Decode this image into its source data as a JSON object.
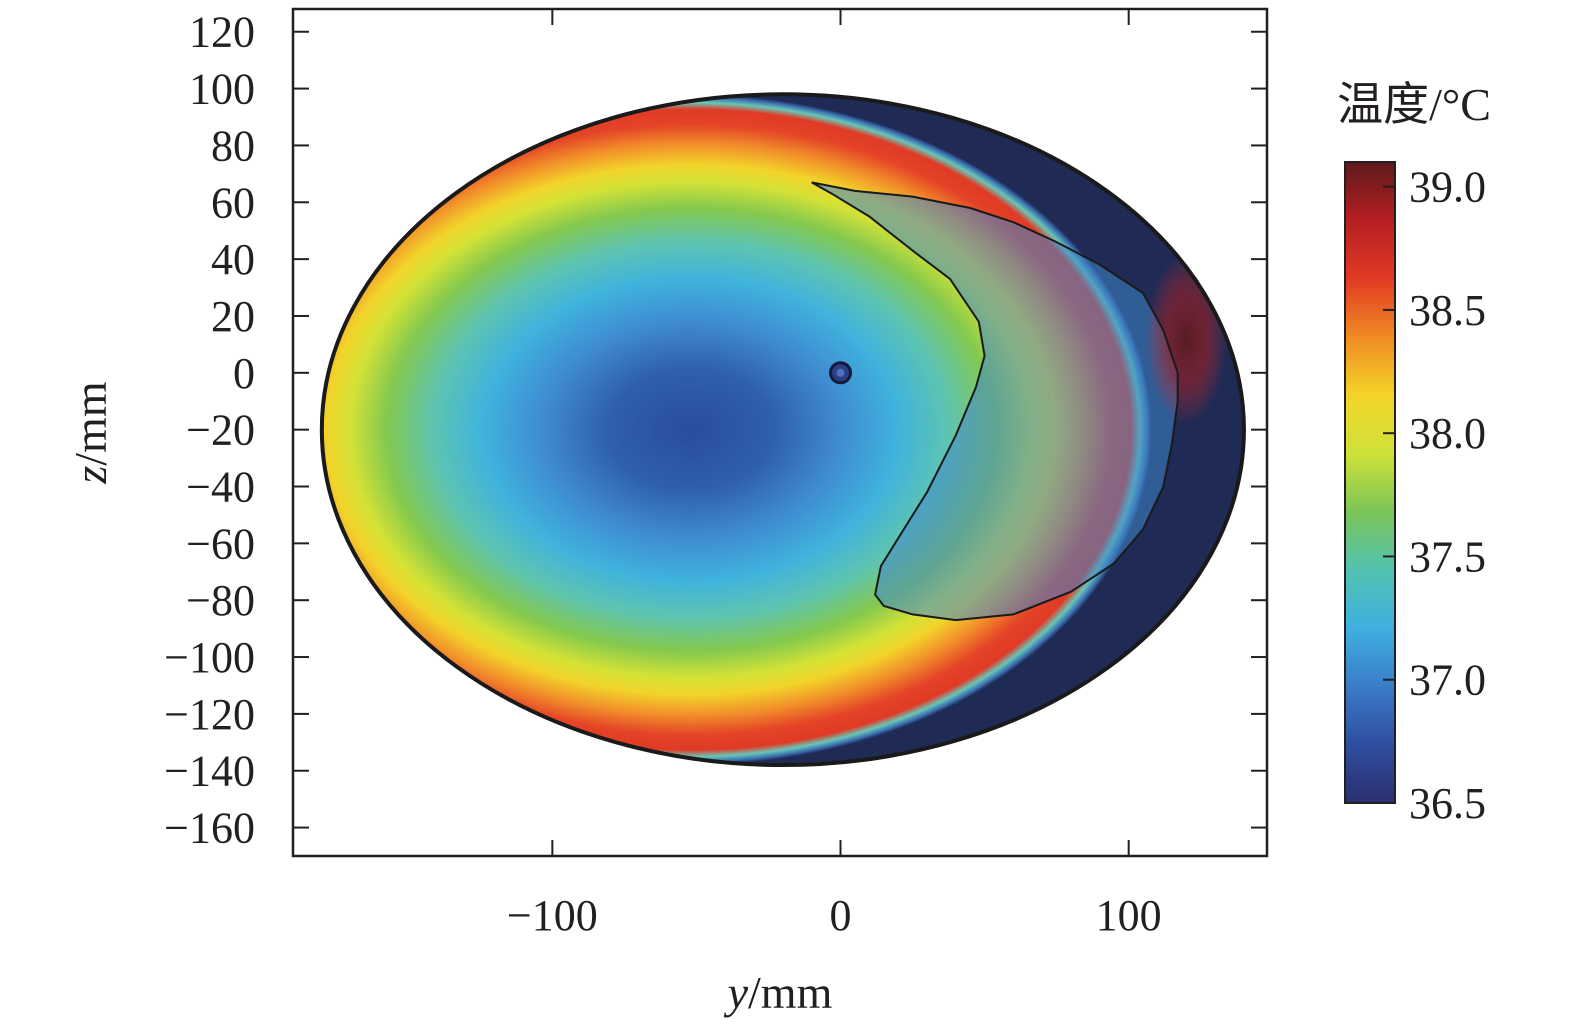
{
  "chart_data": {
    "type": "heatmap",
    "title": "",
    "xlabel": {
      "var": "y",
      "unit": "/mm"
    },
    "ylabel": {
      "var": "z",
      "unit": "/mm"
    },
    "colorbar_label": "温度/°C",
    "xlim": [
      -190,
      148
    ],
    "ylim": [
      -170,
      128
    ],
    "x_ticks": [
      -100,
      0,
      100
    ],
    "x_tick_labels": [
      "−100",
      "0",
      "100"
    ],
    "y_ticks": [
      120,
      100,
      80,
      60,
      40,
      20,
      0,
      -20,
      -40,
      -60,
      -80,
      -100,
      -120,
      -140,
      -160
    ],
    "y_tick_labels": [
      "120",
      "100",
      "80",
      "60",
      "40",
      "20",
      "0",
      "−20",
      "−40",
      "−60",
      "−80",
      "−100",
      "−120",
      "−140",
      "−160"
    ],
    "colorbar_range": [
      36.5,
      39.1
    ],
    "colorbar_ticks": [
      39.0,
      38.5,
      38.0,
      37.5,
      37.0,
      36.5
    ],
    "colorbar_tick_labels": [
      "39.0",
      "38.5",
      "38.0",
      "37.5",
      "37.0",
      "36.5"
    ],
    "colorscale": [
      "#2a2f6f",
      "#2f4ea0",
      "#3a7cc8",
      "#3fb0e0",
      "#52c2b0",
      "#7cc556",
      "#cfe23a",
      "#f3d428",
      "#f08a23",
      "#e23a24",
      "#b51f22",
      "#5e1a1c"
    ],
    "cross_section": {
      "center": [
        -20,
        -20
      ],
      "semi_axis_y": 160,
      "semi_axis_z": 118
    },
    "grid": false,
    "legend": "none",
    "series": [
      {
        "kind": "contour",
        "points": [
          [
            -10,
            67
          ],
          [
            5,
            64
          ],
          [
            25,
            62
          ],
          [
            45,
            58
          ],
          [
            60,
            53
          ],
          [
            75,
            46
          ],
          [
            90,
            38
          ],
          [
            105,
            28
          ],
          [
            112,
            15
          ],
          [
            117,
            0
          ],
          [
            117,
            -10
          ],
          [
            115,
            -25
          ],
          [
            112,
            -40
          ],
          [
            105,
            -55
          ],
          [
            95,
            -67
          ],
          [
            80,
            -77
          ],
          [
            60,
            -85
          ],
          [
            40,
            -87
          ],
          [
            25,
            -85
          ],
          [
            15,
            -82
          ],
          [
            12,
            -78
          ],
          [
            14,
            -68
          ],
          [
            22,
            -55
          ],
          [
            30,
            -42
          ],
          [
            40,
            -22
          ],
          [
            47,
            -5
          ],
          [
            50,
            6
          ],
          [
            48,
            18
          ],
          [
            38,
            33
          ],
          [
            25,
            43
          ],
          [
            10,
            55
          ],
          [
            -3,
            63
          ],
          [
            -10,
            67
          ]
        ]
      },
      {
        "kind": "marker",
        "point": [
          0,
          0
        ]
      }
    ]
  }
}
